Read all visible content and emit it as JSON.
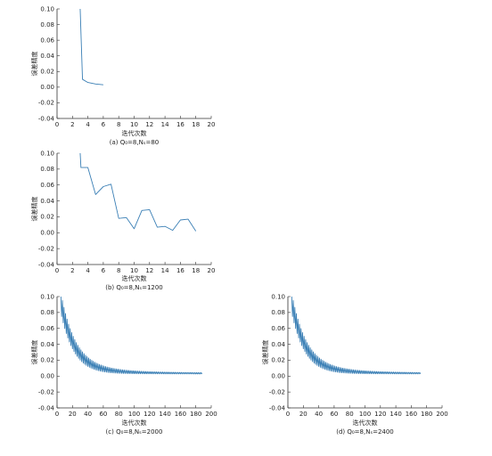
{
  "figure": {
    "panels": [
      {
        "id": "a",
        "caption": "(a) Q₀=8,Nₛ=80"
      },
      {
        "id": "b",
        "caption": "(b) Q₀=8,Nₛ=1200"
      },
      {
        "id": "c",
        "caption": "(c) Q₀=8,Nₛ=2000"
      },
      {
        "id": "d",
        "caption": "(d) Q₀=8,Nₛ=2400"
      }
    ]
  },
  "chart_data": [
    {
      "type": "line",
      "xlabel": "迭代次数",
      "ylabel": "误差精度",
      "xlim": [
        0,
        20
      ],
      "ylim": [
        -0.04,
        0.1
      ],
      "xticks": [
        0,
        2,
        4,
        6,
        8,
        10,
        12,
        14,
        16,
        18,
        20
      ],
      "yticks": [
        -0.04,
        -0.02,
        0.0,
        0.02,
        0.04,
        0.06,
        0.08,
        0.1
      ],
      "grid": false,
      "color": "#3a7fb5",
      "x": [
        3,
        3.3,
        4,
        5,
        6
      ],
      "y": [
        0.1,
        0.01,
        0.006,
        0.004,
        0.003
      ]
    },
    {
      "type": "line",
      "xlabel": "迭代次数",
      "ylabel": "误差精度",
      "xlim": [
        0,
        20
      ],
      "ylim": [
        -0.04,
        0.1
      ],
      "xticks": [
        0,
        2,
        4,
        6,
        8,
        10,
        12,
        14,
        16,
        18,
        20
      ],
      "yticks": [
        -0.04,
        -0.02,
        0.0,
        0.02,
        0.04,
        0.06,
        0.08,
        0.1
      ],
      "grid": false,
      "color": "#3a7fb5",
      "x": [
        3,
        3.1,
        4,
        5,
        6,
        7,
        8,
        9,
        10,
        11,
        12,
        13,
        14,
        15,
        16,
        17,
        18
      ],
      "y": [
        0.1,
        0.082,
        0.082,
        0.048,
        0.058,
        0.061,
        0.018,
        0.019,
        0.005,
        0.028,
        0.029,
        0.007,
        0.008,
        0.003,
        0.016,
        0.017,
        0.002
      ]
    },
    {
      "type": "line",
      "xlabel": "迭代次数",
      "ylabel": "误差精度",
      "xlim": [
        0,
        200
      ],
      "ylim": [
        -0.04,
        0.1
      ],
      "xticks": [
        0,
        20,
        40,
        60,
        80,
        100,
        120,
        140,
        160,
        180,
        200
      ],
      "yticks": [
        -0.04,
        -0.02,
        0.0,
        0.02,
        0.04,
        0.06,
        0.08,
        0.1
      ],
      "grid": false,
      "color": "#3a7fb5",
      "x_range": [
        5,
        188
      ],
      "y_start": 0.1,
      "y_end": 0.003,
      "oscillation_amplitude": 0.012
    },
    {
      "type": "line",
      "xlabel": "迭代次数",
      "ylabel": "误差精度",
      "xlim": [
        0,
        200
      ],
      "ylim": [
        -0.04,
        0.1
      ],
      "xticks": [
        0,
        20,
        40,
        60,
        80,
        100,
        120,
        140,
        160,
        180,
        200
      ],
      "yticks": [
        -0.04,
        -0.02,
        0.0,
        0.02,
        0.04,
        0.06,
        0.08,
        0.1
      ],
      "grid": false,
      "color": "#3a7fb5",
      "x_range": [
        5,
        172
      ],
      "y_start": 0.1,
      "y_end": 0.003,
      "oscillation_amplitude": 0.012
    }
  ]
}
